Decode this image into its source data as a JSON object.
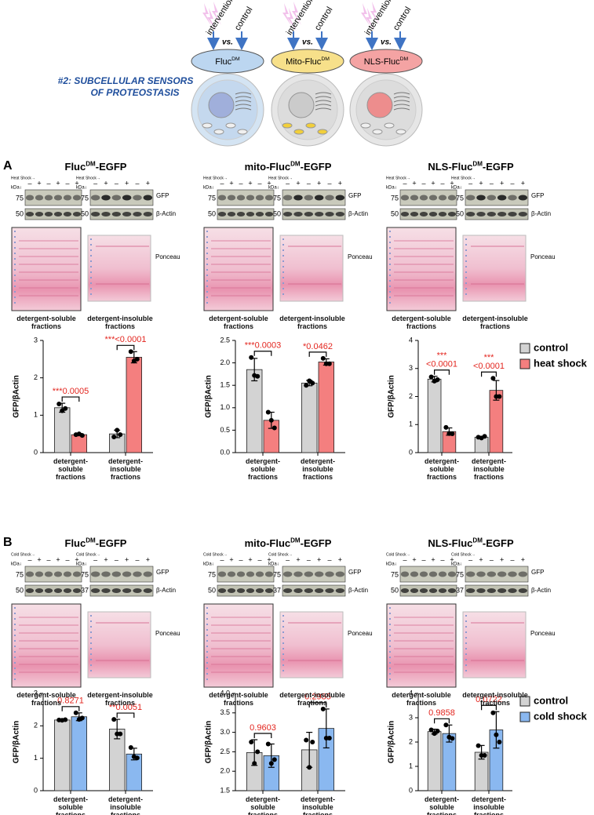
{
  "header": {
    "title": [
      "#2: SUBCELLULAR SENSORS",
      "OF PROTEOSTASIS"
    ],
    "intervention": "intervention",
    "vs": "vs.",
    "control": "control",
    "sensors": [
      {
        "name": "Fluc",
        "sup": "DM"
      },
      {
        "name": "Mito-Fluc",
        "sup": "DM"
      },
      {
        "name": "NLS-Fluc",
        "sup": "DM"
      }
    ]
  },
  "panels": [
    {
      "label": "A",
      "treatment": "Heat Shock→",
      "kda": "kDa↓",
      "lanes": [
        "–",
        "+",
        "–",
        "+",
        "–",
        "+"
      ],
      "groups": [
        {
          "title": {
            "name": "Fluc",
            "sup": "DM",
            "suffix": "-EGFP"
          },
          "markers_top": [
            "75",
            "75"
          ],
          "markers_bottom": [
            "50",
            "50"
          ],
          "gfp": "GFP",
          "actin": "β-Actin",
          "ponceau": "Ponceau",
          "fractions": [
            "detergent-soluble fractions",
            "detergent-insoluble fractions"
          ]
        },
        {
          "title": {
            "name": "mito-Fluc",
            "sup": "DM",
            "suffix": "-EGFP"
          },
          "markers_top": [
            "75",
            "75"
          ],
          "markers_bottom": [
            "50",
            "50"
          ],
          "gfp": "GFP",
          "actin": "β-Actin",
          "ponceau": "Ponceau",
          "fractions": [
            "detergent-soluble fractions",
            "detergent-insoluble fractions"
          ]
        },
        {
          "title": {
            "name": "NLS-Fluc",
            "sup": "DM",
            "suffix": "-EGFP"
          },
          "markers_top": [
            "75",
            "75"
          ],
          "markers_bottom": [
            "50",
            "50"
          ],
          "gfp": "GFP",
          "actin": "β-Actin",
          "ponceau": "Ponceau",
          "fractions": [
            "detergent-soluble fractions",
            "detergent-insoluble fractions"
          ]
        }
      ]
    },
    {
      "label": "B",
      "treatment": "Cold Shock→",
      "kda": "kDa↓",
      "lanes": [
        "–",
        "+",
        "–",
        "+",
        "–",
        "+"
      ],
      "groups": [
        {
          "title": {
            "name": "Fluc",
            "sup": "DM",
            "suffix": "-EGFP"
          },
          "markers_top": [
            "75",
            "75"
          ],
          "markers_bottom": [
            "50",
            "37"
          ],
          "gfp": "GFP",
          "actin": "β-Actin",
          "ponceau": "Ponceau",
          "fractions": [
            "detergent-soluble fractions",
            "detergent-insoluble fractions"
          ]
        },
        {
          "title": {
            "name": "mito-Fluc",
            "sup": "DM",
            "suffix": "-EGFP"
          },
          "markers_top": [
            "75",
            "75"
          ],
          "markers_bottom": [
            "50",
            "37"
          ],
          "gfp": "GFP",
          "actin": "β-Actin",
          "ponceau": "Ponceau",
          "fractions": [
            "detergent-soluble fractions",
            "detergent-insoluble fractions"
          ]
        },
        {
          "title": {
            "name": "NLS-Fluc",
            "sup": "DM",
            "suffix": "-EGFP"
          },
          "markers_top": [
            "75",
            "75"
          ],
          "markers_bottom": [
            "50",
            "37"
          ],
          "gfp": "GFP",
          "actin": "β-Actin",
          "ponceau": "Ponceau",
          "fractions": [
            "detergent-soluble fractions",
            "detergent-insoluble fractions"
          ]
        }
      ]
    }
  ],
  "chart_data": [
    {
      "type": "bar",
      "ylabel": "GFP/βActin",
      "categories": [
        "detergent-soluble fractions",
        "detergent-insoluble fractions"
      ],
      "ylim": [
        0,
        3
      ],
      "yticks": [
        0,
        1,
        2,
        3
      ],
      "legend": false,
      "series": [
        {
          "name": "control",
          "color": "#d3d3d3",
          "values": [
            1.2,
            0.5
          ],
          "errors": [
            0.12,
            0.1
          ],
          "points": [
            [
              1.3,
              1.12,
              1.18
            ],
            [
              0.42,
              0.6,
              0.48
            ]
          ]
        },
        {
          "name": "heat shock",
          "color": "#f47f7f",
          "values": [
            0.48,
            2.55
          ],
          "errors": [
            0.03,
            0.15
          ],
          "points": [
            [
              0.48,
              0.5,
              0.46
            ],
            [
              2.7,
              2.45,
              2.5
            ]
          ]
        }
      ],
      "annotations": [
        [
          "***0.0005"
        ],
        [
          "***<0.0001"
        ]
      ]
    },
    {
      "type": "bar",
      "ylabel": "GFP/βActin",
      "categories": [
        "detergent-soluble fractions",
        "detergent-insoluble fractions"
      ],
      "ylim": [
        0,
        2.5
      ],
      "yticks": [
        {
          "value": 0,
          "label": "0.0"
        },
        0.5,
        {
          "value": 1,
          "label": "1.0"
        },
        1.5,
        {
          "value": 2,
          "label": "2.0"
        },
        2.5
      ],
      "legend": false,
      "series": [
        {
          "name": "control",
          "color": "#d3d3d3",
          "values": [
            1.85,
            1.55
          ],
          "errors": [
            0.25,
            0.06
          ],
          "points": [
            [
              2.12,
              1.72,
              1.7
            ],
            [
              1.5,
              1.6,
              1.55
            ]
          ]
        },
        {
          "name": "heat shock",
          "color": "#f47f7f",
          "values": [
            0.72,
            2.02
          ],
          "errors": [
            0.18,
            0.07
          ],
          "points": [
            [
              0.9,
              0.72,
              0.55
            ],
            [
              2.1,
              1.98,
              1.98
            ]
          ]
        }
      ],
      "annotations": [
        [
          "***0.0003"
        ],
        [
          "*0.0462"
        ]
      ]
    },
    {
      "type": "bar",
      "ylabel": "GFP/βActin",
      "categories": [
        "detergent-soluble fractions",
        "detergent-insoluble fractions"
      ],
      "ylim": [
        0,
        4
      ],
      "yticks": [
        0,
        1,
        2,
        3,
        4
      ],
      "legend": "right",
      "series": [
        {
          "name": "control",
          "color": "#d3d3d3",
          "values": [
            2.62,
            0.55
          ],
          "errors": [
            0.1,
            0.03
          ],
          "points": [
            [
              2.7,
              2.55,
              2.6
            ],
            [
              0.55,
              0.52,
              0.58
            ]
          ]
        },
        {
          "name": "heat shock",
          "color": "#f47f7f",
          "values": [
            0.75,
            2.22
          ],
          "errors": [
            0.13,
            0.35
          ],
          "points": [
            [
              0.9,
              0.68,
              0.67
            ],
            [
              2.65,
              2.0,
              2.0
            ]
          ]
        }
      ],
      "annotations": [
        [
          "***",
          "<0.0001"
        ],
        [
          "***",
          "<0.0001"
        ]
      ]
    },
    {
      "type": "bar",
      "ylabel": "GFP/βActin",
      "categories": [
        "detergent-soluble fractions",
        "detergent-insoluble fractions"
      ],
      "ylim": [
        0,
        3
      ],
      "yticks": [
        0,
        1,
        2,
        3
      ],
      "legend": false,
      "series": [
        {
          "name": "control",
          "color": "#d3d3d3",
          "values": [
            2.18,
            1.9
          ],
          "errors": [
            0.02,
            0.3
          ],
          "points": [
            [
              2.18,
              2.17,
              2.19
            ],
            [
              2.2,
              1.75,
              1.75
            ]
          ]
        },
        {
          "name": "cold shock",
          "color": "#8ab8f0",
          "values": [
            2.28,
            1.13
          ],
          "errors": [
            0.12,
            0.18
          ],
          "points": [
            [
              2.4,
              2.2,
              2.24
            ],
            [
              1.33,
              1.05,
              1.01
            ]
          ]
        }
      ],
      "annotations": [
        [
          "0.8271"
        ],
        [
          "**0.0051"
        ]
      ]
    },
    {
      "type": "bar",
      "ylabel": "GFP/βActin",
      "categories": [
        "detergent-soluble fractions",
        "detergent-insoluble fractions"
      ],
      "ylim": [
        1.5,
        4
      ],
      "yticks": [
        1.5,
        {
          "value": 2,
          "label": "2.0"
        },
        2.5,
        {
          "value": 3,
          "label": "3.0"
        },
        3.5,
        {
          "value": 4,
          "label": "4.0"
        }
      ],
      "legend": false,
      "series": [
        {
          "name": "control",
          "color": "#d3d3d3",
          "values": [
            2.48,
            2.55
          ],
          "errors": [
            0.33,
            0.45
          ],
          "points": [
            [
              2.75,
              2.2,
              2.5
            ],
            [
              2.8,
              2.1,
              2.75
            ]
          ]
        },
        {
          "name": "cold shock",
          "color": "#8ab8f0",
          "values": [
            2.4,
            3.1
          ],
          "errors": [
            0.3,
            0.5
          ],
          "points": [
            [
              2.7,
              2.2,
              2.3
            ],
            [
              3.6,
              2.85,
              2.85
            ]
          ]
        }
      ],
      "annotations": [
        [
          "0.9603"
        ],
        [
          "0.2935"
        ]
      ]
    },
    {
      "type": "bar",
      "ylabel": "GFP/βActin",
      "categories": [
        "detergent-soluble fractions",
        "detergent-insoluble fractions"
      ],
      "ylim": [
        0,
        4
      ],
      "yticks": [
        0,
        1,
        2,
        3,
        4
      ],
      "legend": "right",
      "series": [
        {
          "name": "control",
          "color": "#d3d3d3",
          "values": [
            2.43,
            1.58
          ],
          "errors": [
            0.1,
            0.28
          ],
          "points": [
            [
              2.5,
              2.35,
              2.45
            ],
            [
              1.85,
              1.45,
              1.45
            ]
          ]
        },
        {
          "name": "cold shock",
          "color": "#8ab8f0",
          "values": [
            2.35,
            2.5
          ],
          "errors": [
            0.35,
            0.75
          ],
          "points": [
            [
              2.7,
              2.2,
              2.15
            ],
            [
              3.2,
              2.3,
              2.0
            ]
          ]
        }
      ],
      "annotations": [
        [
          "0.9858"
        ],
        [
          "0.0722"
        ]
      ]
    }
  ]
}
